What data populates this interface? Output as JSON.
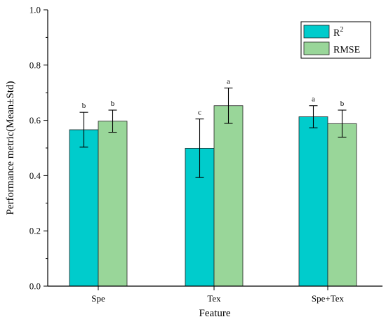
{
  "chart_data": {
    "type": "bar",
    "xlabel": "Feature",
    "ylabel": "Performance metric(Mean±Std)",
    "ylim": [
      0,
      1.0
    ],
    "yticks": [
      "0.0",
      "0.2",
      "0.4",
      "0.6",
      "0.8",
      "1.0"
    ],
    "categories": [
      "Spe",
      "Tex",
      "Spe+Tex"
    ],
    "series": [
      {
        "name": "R",
        "name_superscript": "2",
        "color": "#00CCCC",
        "values": [
          0.566,
          0.499,
          0.613
        ],
        "errors": [
          0.063,
          0.106,
          0.04
        ],
        "letters": [
          "b",
          "c",
          "a"
        ]
      },
      {
        "name": "RMSE",
        "color": "#99D699",
        "values": [
          0.597,
          0.653,
          0.588
        ],
        "errors": [
          0.04,
          0.064,
          0.049
        ],
        "letters": [
          "b",
          "a",
          "b"
        ]
      }
    ],
    "grid": false,
    "legend_position": "top-right"
  }
}
